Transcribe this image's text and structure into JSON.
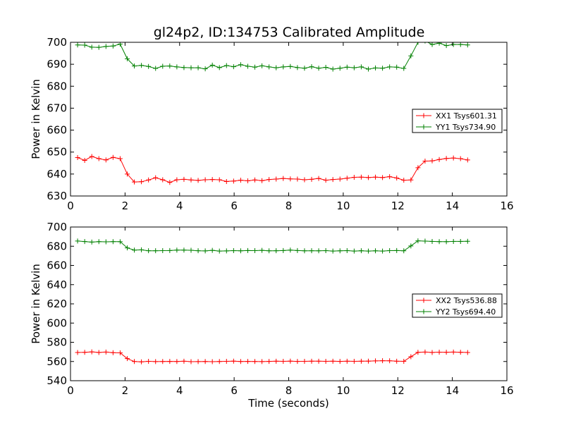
{
  "title": "gl24p2, ID:134753 Calibrated Amplitude",
  "chart_data": [
    {
      "type": "line",
      "ylabel": "Power in Kelvin",
      "xlabel": "",
      "xlim": [
        0,
        16
      ],
      "ylim": [
        630,
        700
      ],
      "xticks": [
        0,
        2,
        4,
        6,
        8,
        10,
        12,
        14,
        16
      ],
      "yticks": [
        630,
        640,
        650,
        660,
        670,
        680,
        690,
        700
      ],
      "grid": false,
      "legend_position": "center-right",
      "x": [
        0.26,
        0.52,
        0.78,
        1.04,
        1.3,
        1.56,
        1.82,
        2.08,
        2.34,
        2.6,
        2.86,
        3.12,
        3.38,
        3.64,
        3.9,
        4.16,
        4.42,
        4.68,
        4.94,
        5.2,
        5.46,
        5.72,
        5.98,
        6.24,
        6.5,
        6.76,
        7.02,
        7.28,
        7.54,
        7.8,
        8.06,
        8.32,
        8.58,
        8.84,
        9.1,
        9.36,
        9.62,
        9.88,
        10.14,
        10.4,
        10.66,
        10.92,
        11.18,
        11.44,
        11.7,
        11.96,
        12.22,
        12.48,
        12.74,
        13.0,
        13.26,
        13.52,
        13.78,
        14.04,
        14.3,
        14.56
      ],
      "series": [
        {
          "name": "XX1 Tsys601.31",
          "color": "#ff0000",
          "values": [
            647.5,
            646.2,
            648.0,
            647.0,
            646.4,
            647.6,
            647.0,
            640.0,
            636.4,
            636.5,
            637.3,
            638.3,
            637.4,
            636.2,
            637.4,
            637.6,
            637.3,
            637.1,
            637.4,
            637.5,
            637.4,
            636.6,
            636.8,
            637.2,
            636.9,
            637.3,
            637.0,
            637.5,
            637.7,
            638.0,
            637.8,
            637.7,
            637.4,
            637.6,
            638.0,
            637.2,
            637.5,
            637.7,
            638.1,
            638.5,
            638.6,
            638.4,
            638.6,
            638.4,
            638.8,
            638.2,
            637.2,
            637.3,
            642.9,
            645.9,
            646.0,
            646.6,
            647.1,
            647.3,
            647.0,
            646.4
          ]
        },
        {
          "name": "YY1 Tsys734.90",
          "color": "#008000",
          "values": [
            698.8,
            698.7,
            697.8,
            697.7,
            698.1,
            698.3,
            699.2,
            692.5,
            689.2,
            689.5,
            689.0,
            688.1,
            689.1,
            689.2,
            688.8,
            688.5,
            688.4,
            688.4,
            687.9,
            689.6,
            688.5,
            689.4,
            688.9,
            689.8,
            689.1,
            688.7,
            689.3,
            688.8,
            688.4,
            688.8,
            689.0,
            688.5,
            688.2,
            688.9,
            688.2,
            688.6,
            687.8,
            688.2,
            688.7,
            688.4,
            688.8,
            687.8,
            688.3,
            688.2,
            688.8,
            688.7,
            688.1,
            693.8,
            700.0,
            700.6,
            699.0,
            699.6,
            698.5,
            699.0,
            699.0,
            698.8
          ]
        }
      ]
    },
    {
      "type": "line",
      "ylabel": "Power in Kelvin",
      "xlabel": "Time (seconds)",
      "xlim": [
        0,
        16
      ],
      "ylim": [
        540,
        700
      ],
      "xticks": [
        0,
        2,
        4,
        6,
        8,
        10,
        12,
        14,
        16
      ],
      "yticks": [
        540,
        560,
        580,
        600,
        620,
        640,
        660,
        680,
        700
      ],
      "grid": false,
      "legend_position": "center-right",
      "x": [
        0.26,
        0.52,
        0.78,
        1.04,
        1.3,
        1.56,
        1.82,
        2.08,
        2.34,
        2.6,
        2.86,
        3.12,
        3.38,
        3.64,
        3.9,
        4.16,
        4.42,
        4.68,
        4.94,
        5.2,
        5.46,
        5.72,
        5.98,
        6.24,
        6.5,
        6.76,
        7.02,
        7.28,
        7.54,
        7.8,
        8.06,
        8.32,
        8.58,
        8.84,
        9.1,
        9.36,
        9.62,
        9.88,
        10.14,
        10.4,
        10.66,
        10.92,
        11.18,
        11.44,
        11.7,
        11.96,
        12.22,
        12.48,
        12.74,
        13.0,
        13.26,
        13.52,
        13.78,
        14.04,
        14.3,
        14.56
      ],
      "series": [
        {
          "name": "XX2 Tsys536.88",
          "color": "#ff0000",
          "values": [
            569.4,
            569.5,
            570.0,
            569.4,
            569.8,
            569.2,
            569.0,
            563.0,
            560.0,
            559.6,
            560.2,
            559.9,
            560.0,
            560.1,
            560.0,
            560.3,
            559.8,
            559.9,
            560.0,
            559.8,
            560.0,
            560.2,
            560.4,
            560.0,
            560.1,
            560.0,
            559.9,
            560.1,
            560.3,
            560.2,
            560.4,
            560.1,
            560.2,
            560.3,
            560.3,
            560.2,
            560.3,
            560.1,
            560.3,
            560.2,
            560.3,
            560.4,
            560.6,
            560.8,
            560.7,
            560.3,
            560.2,
            565.0,
            569.5,
            569.8,
            569.4,
            569.7,
            569.6,
            569.8,
            569.6,
            569.4
          ]
        },
        {
          "name": "YY2 Tsys694.40",
          "color": "#008000",
          "values": [
            685.4,
            684.9,
            684.3,
            684.8,
            684.6,
            684.8,
            684.7,
            678.3,
            676.0,
            676.2,
            675.3,
            675.3,
            675.4,
            675.5,
            676.0,
            676.0,
            675.8,
            675.3,
            675.1,
            675.7,
            675.0,
            675.1,
            675.4,
            675.2,
            675.5,
            675.4,
            675.7,
            675.2,
            675.3,
            675.5,
            676.0,
            675.5,
            675.2,
            675.3,
            675.2,
            675.4,
            675.0,
            675.2,
            675.4,
            675.0,
            675.3,
            675.0,
            675.2,
            675.0,
            675.4,
            675.5,
            675.2,
            680.3,
            685.6,
            685.3,
            685.0,
            684.8,
            684.7,
            685.0,
            685.0,
            685.1
          ]
        }
      ]
    }
  ]
}
